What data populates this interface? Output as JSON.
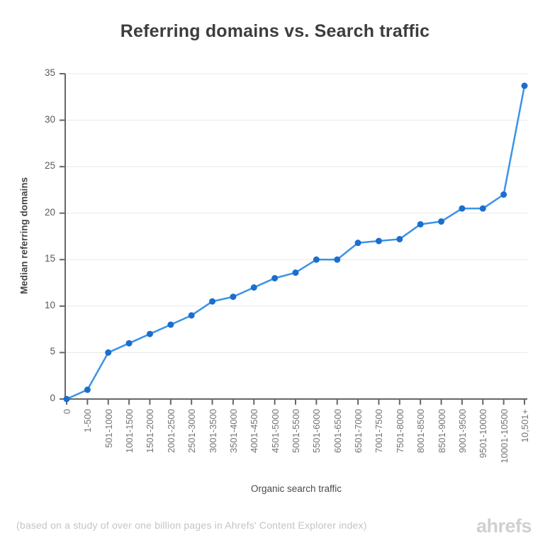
{
  "title": "Referring domains vs. Search traffic",
  "footer": {
    "note": "(based on a study of over one billion pages in Ahrefs' Content Explorer index)",
    "brand": "ahrefs"
  },
  "chart_data": {
    "type": "line",
    "title": "Referring domains vs. Search traffic",
    "xlabel": "Organic search traffic",
    "ylabel": "Median referring domains",
    "categories": [
      "0",
      "1-500",
      "501-1000",
      "1001-1500",
      "1501-2000",
      "2001-2500",
      "2501-3000",
      "3001-3500",
      "3501-4000",
      "4001-4500",
      "4501-5000",
      "5001-5500",
      "5501-6000",
      "6001-6500",
      "6501-7000",
      "7001-7500",
      "7501-8000",
      "8001-8500",
      "8501-9000",
      "9001-9500",
      "9501-10000",
      "10001-10500",
      "10,501+"
    ],
    "values": [
      0,
      1,
      5,
      6,
      7,
      8,
      9,
      10.5,
      11,
      12,
      13,
      13.6,
      15,
      15,
      16.8,
      17,
      17.2,
      18.8,
      19.1,
      20.5,
      20.5,
      22,
      33.7
    ],
    "ylim": [
      0,
      35
    ],
    "yticks": [
      0,
      5,
      10,
      15,
      20,
      25,
      30,
      35
    ],
    "grid": "horizontal",
    "legend": "none",
    "line_color": "#3b93e6",
    "marker_color": "#1a6ed0",
    "axis_color": "#666666",
    "grid_color": "#e8e8e8"
  }
}
